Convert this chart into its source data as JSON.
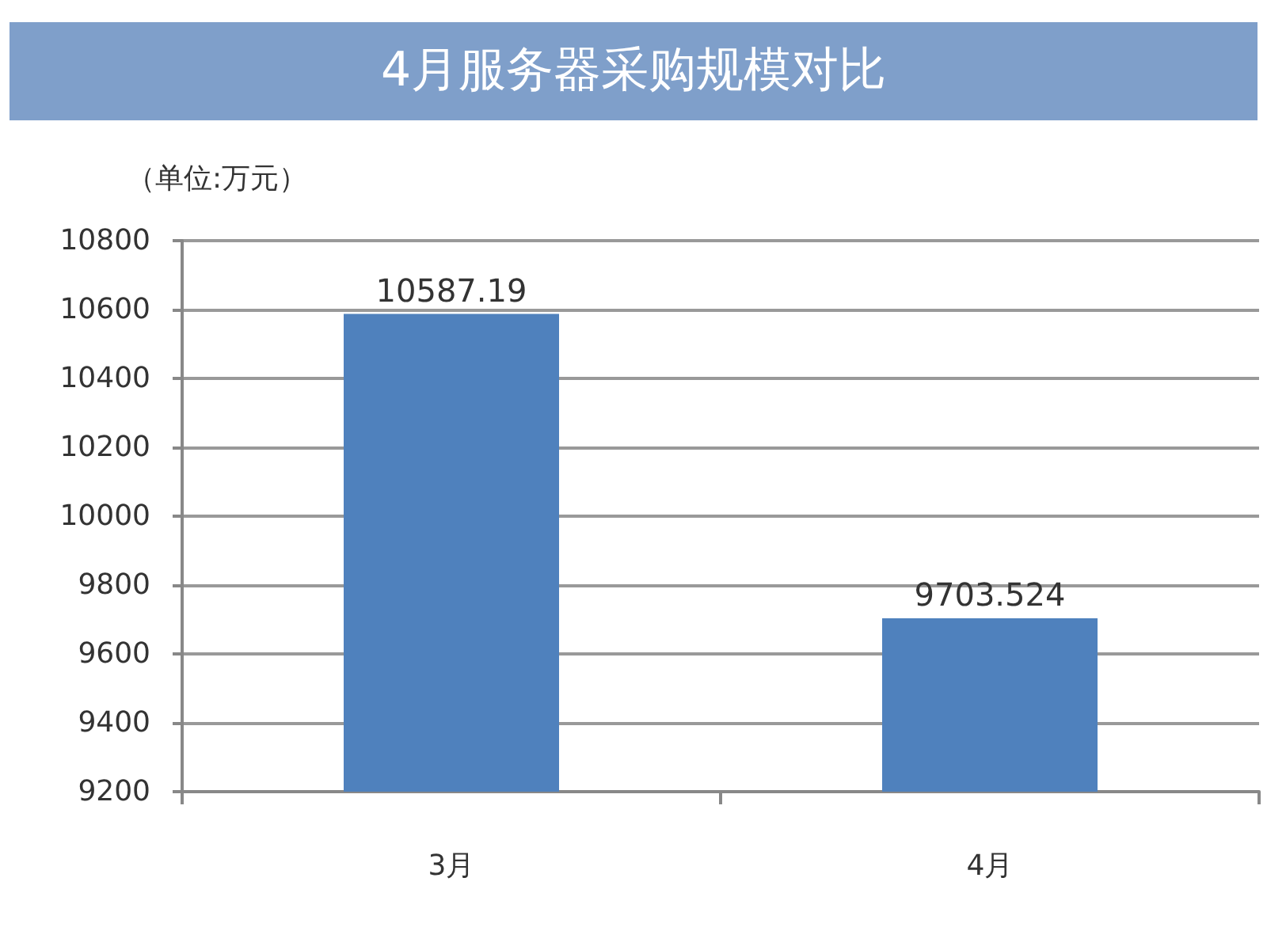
{
  "chart_data": {
    "type": "bar",
    "title": "4月服务器采购规模对比",
    "ylabel": "（单位:万元）",
    "categories": [
      "3月",
      "4月"
    ],
    "values": [
      10587.19,
      9703.524
    ],
    "color": "#4f81bd",
    "ylim": [
      9200,
      10800
    ],
    "yticks": [
      9200,
      9400,
      9600,
      9800,
      10000,
      10200,
      10400,
      10600,
      10800
    ],
    "grid": "y",
    "data_labels": true
  }
}
